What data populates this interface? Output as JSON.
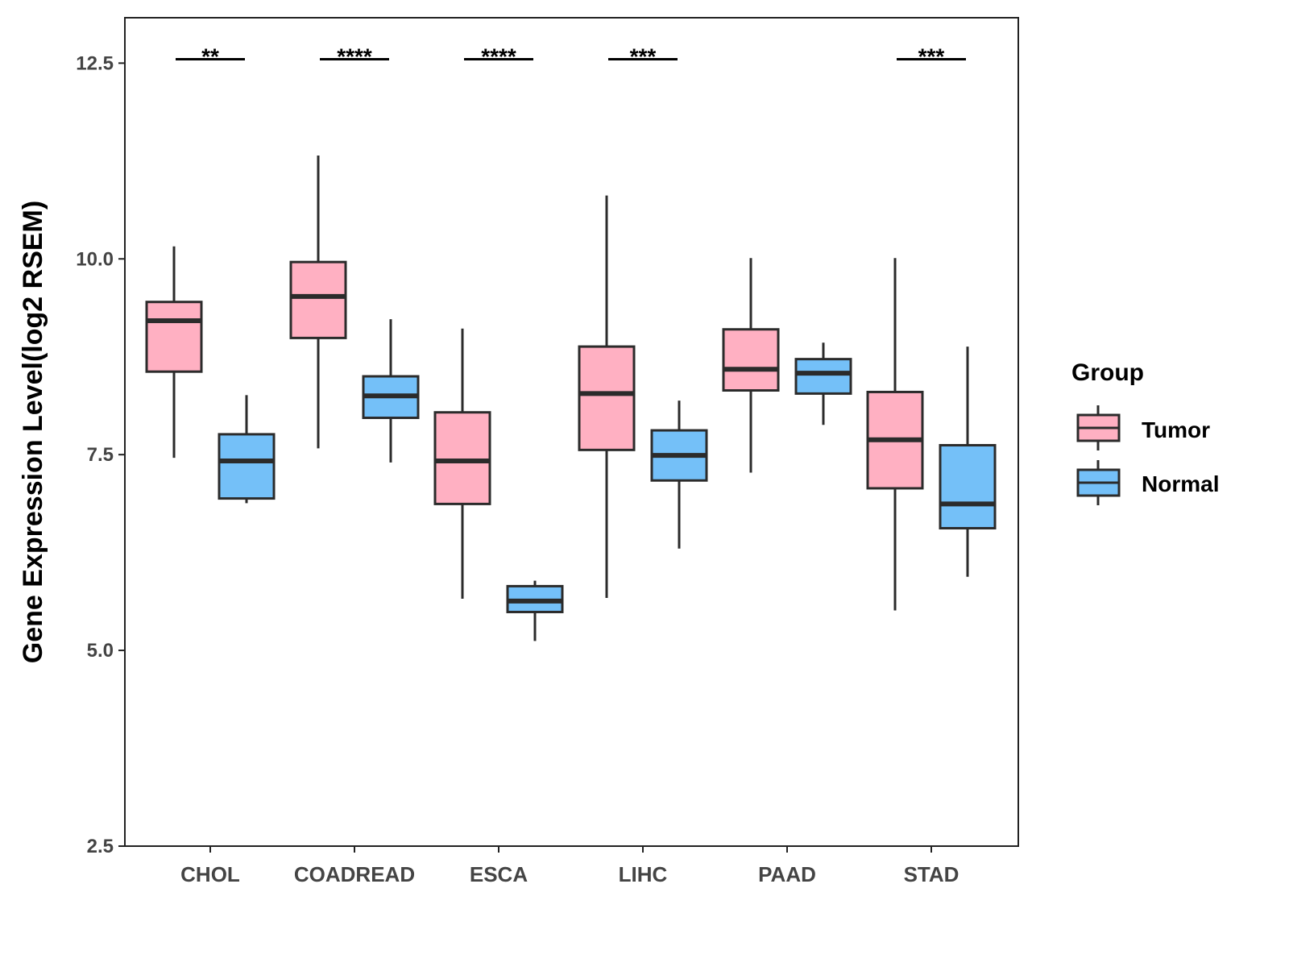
{
  "chart_data": {
    "type": "box",
    "title": "",
    "xlabel": "",
    "ylabel": "Gene Expression Level(log2 RSEM)",
    "ylim": [
      2.5,
      13.08
    ],
    "yticks": [
      2.5,
      5.0,
      7.5,
      10.0,
      12.5
    ],
    "ytick_labels": [
      "2.5",
      "5.0",
      "7.5",
      "10.0",
      "12.5"
    ],
    "grid": false,
    "categories": [
      "CHOL",
      "COADREAD",
      "ESCA",
      "LIHC",
      "PAAD",
      "STAD"
    ],
    "legend": {
      "title": "Group",
      "position": "right",
      "entries": [
        "Tumor",
        "Normal"
      ]
    },
    "colors": {
      "Tumor": "#FFB0C2",
      "Normal": "#74C0F8",
      "outline": "#2b2b2b"
    },
    "series": [
      {
        "name": "Tumor",
        "boxes": [
          {
            "min": 7.46,
            "q1": 8.56,
            "median": 9.21,
            "q3": 9.45,
            "max": 10.16
          },
          {
            "min": 7.58,
            "q1": 8.99,
            "median": 9.52,
            "q3": 9.96,
            "max": 11.32
          },
          {
            "min": 5.66,
            "q1": 6.87,
            "median": 7.42,
            "q3": 8.04,
            "max": 9.11
          },
          {
            "min": 5.67,
            "q1": 7.56,
            "median": 8.28,
            "q3": 8.88,
            "max": 10.81
          },
          {
            "min": 7.27,
            "q1": 8.32,
            "median": 8.59,
            "q3": 9.1,
            "max": 10.01
          },
          {
            "min": 5.51,
            "q1": 7.07,
            "median": 7.69,
            "q3": 8.3,
            "max": 10.01
          }
        ]
      },
      {
        "name": "Normal",
        "boxes": [
          {
            "min": 6.88,
            "q1": 6.94,
            "median": 7.42,
            "q3": 7.76,
            "max": 8.26
          },
          {
            "min": 7.4,
            "q1": 7.97,
            "median": 8.25,
            "q3": 8.5,
            "max": 9.23
          },
          {
            "min": 5.12,
            "q1": 5.49,
            "median": 5.63,
            "q3": 5.82,
            "max": 5.89
          },
          {
            "min": 6.3,
            "q1": 7.17,
            "median": 7.49,
            "q3": 7.81,
            "max": 8.19
          },
          {
            "min": 7.88,
            "q1": 8.28,
            "median": 8.54,
            "q3": 8.72,
            "max": 8.93
          },
          {
            "min": 5.94,
            "q1": 6.56,
            "median": 6.87,
            "q3": 7.62,
            "max": 8.88
          }
        ]
      }
    ],
    "significance": [
      "**",
      "****",
      "****",
      "***",
      "",
      "***"
    ],
    "significance_level": 12.55
  }
}
